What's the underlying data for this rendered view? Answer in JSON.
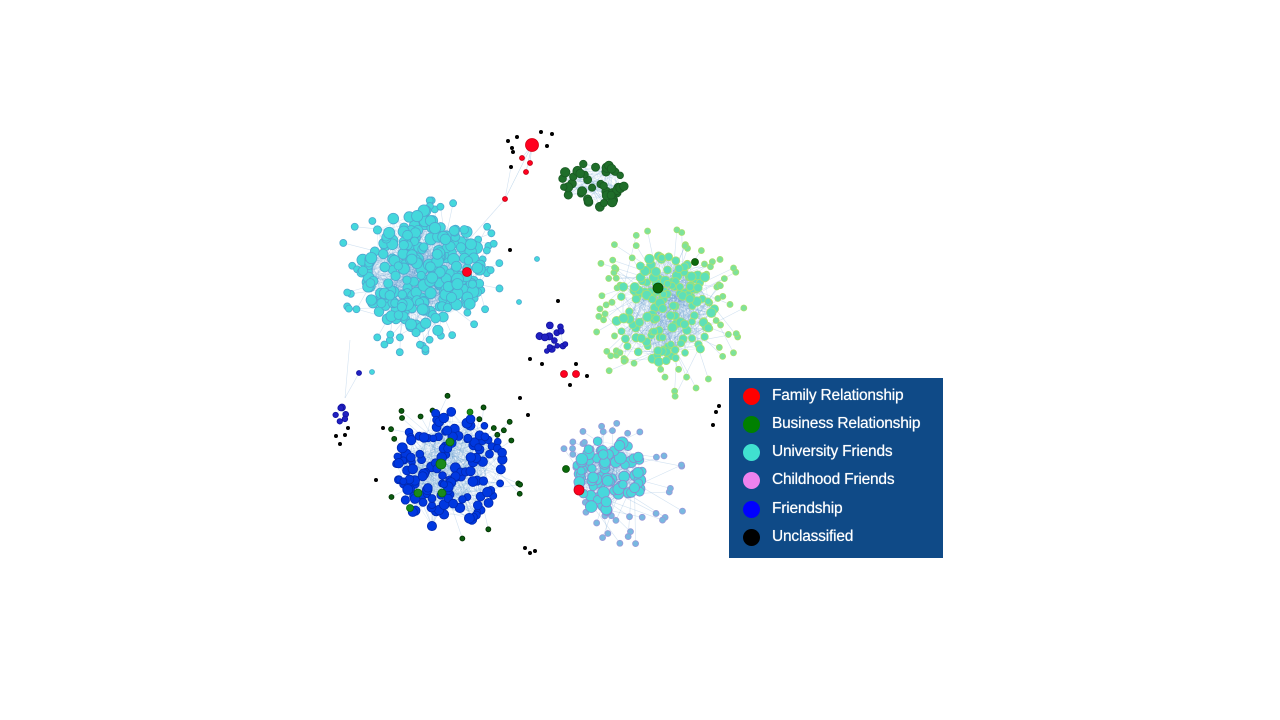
{
  "legend": {
    "items": [
      {
        "label": "Family Relationship",
        "color": "#ff0000"
      },
      {
        "label": "Business Relationship",
        "color": "#008000"
      },
      {
        "label": "University Friends",
        "color": "#40e0d0"
      },
      {
        "label": "Childhood Friends",
        "color": "#ee82ee"
      },
      {
        "label": "Friendship",
        "color": "#0000ff"
      },
      {
        "label": "Unclassified",
        "color": "#000000"
      }
    ]
  },
  "colors": {
    "legend_background": "#0f4a87",
    "edge": "#6a9fd0"
  }
}
